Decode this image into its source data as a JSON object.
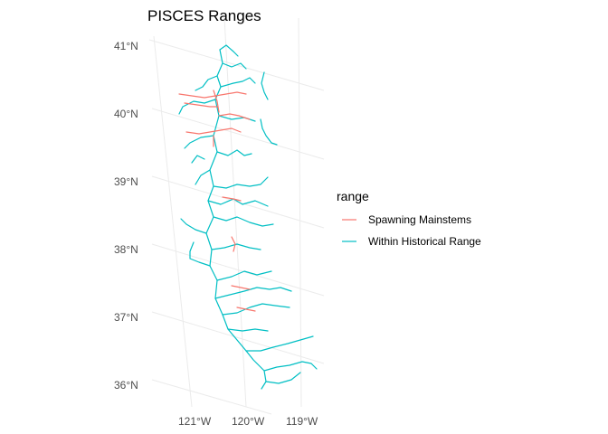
{
  "title": "PISCES Ranges",
  "axes": {
    "lat_labels": [
      "41°N",
      "40°N",
      "39°N",
      "38°N",
      "37°N",
      "36°N"
    ],
    "lon_labels": [
      "121°W",
      "120°W",
      "119°W"
    ]
  },
  "legend": {
    "title": "range",
    "items": [
      {
        "label": "Spawning Mainstems",
        "color": "#F8766D"
      },
      {
        "label": "Within Historical Range",
        "color": "#00BFC4"
      }
    ]
  },
  "chart_data": {
    "type": "map",
    "title": "PISCES Ranges",
    "lat_range": [
      36,
      41
    ],
    "lon_range": [
      -121,
      -119
    ],
    "series": [
      {
        "name": "Spawning Mainstems",
        "color": "#F8766D"
      },
      {
        "name": "Within Historical Range",
        "color": "#00BFC4"
      }
    ],
    "grid": true,
    "legend_position": "right"
  }
}
